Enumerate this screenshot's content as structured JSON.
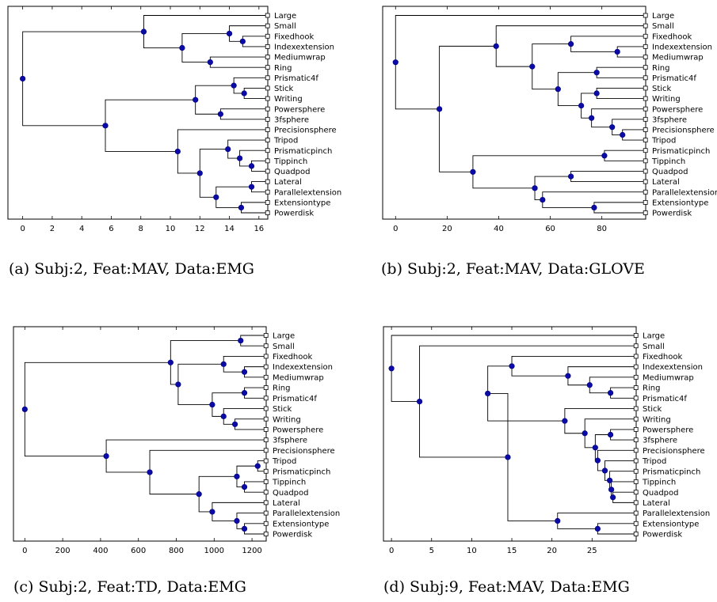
{
  "chart_data": [
    {
      "type": "dendrogram",
      "caption": "(a) Subj:2, Feat:MAV, Data:EMG",
      "xlim": [
        -1,
        16.6
      ],
      "xticks": [
        0,
        2,
        4,
        6,
        8,
        10,
        12,
        14,
        16
      ],
      "leaves": [
        "Large",
        "Small",
        "Fixedhook",
        "Indexextension",
        "Mediumwrap",
        "Ring",
        "Prismatic4f",
        "Stick",
        "Writing",
        "Powersphere",
        "3fsphere",
        "Precisionsphere",
        "Tripod",
        "Prismaticpinch",
        "Tippinch",
        "Quadpod",
        "Lateral",
        "Parallelextension",
        "Extensiontype",
        "Powerdisk"
      ],
      "merges": [
        [
          3,
          4,
          14.9
        ],
        [
          2,
          -1,
          14.0
        ],
        [
          5,
          6,
          12.7
        ],
        [
          -2,
          -3,
          10.8
        ],
        [
          1,
          -4,
          8.2
        ],
        [
          8,
          9,
          15.0
        ],
        [
          7,
          -6,
          14.3
        ],
        [
          10,
          11,
          13.4
        ],
        [
          -7,
          -8,
          11.7
        ],
        [
          15,
          16,
          15.5
        ],
        [
          14,
          -10,
          14.7
        ],
        [
          13,
          -11,
          13.9
        ],
        [
          17,
          18,
          15.5
        ],
        [
          19,
          20,
          14.8
        ],
        [
          -13,
          -14,
          13.1
        ],
        [
          -12,
          -15,
          12.0
        ],
        [
          12,
          -16,
          10.5
        ],
        [
          -9,
          -17,
          5.6
        ],
        [
          -5,
          -18,
          0.0
        ]
      ]
    },
    {
      "type": "dendrogram",
      "caption": "(b) Subj:2, Feat:MAV, Data:GLOVE",
      "xlim": [
        -5,
        97
      ],
      "xticks": [
        0,
        20,
        40,
        60,
        80
      ],
      "leaves": [
        "Large",
        "Small",
        "Fixedhook",
        "Indexextension",
        "Mediumwrap",
        "Ring",
        "Prismatic4f",
        "Stick",
        "Writing",
        "Powersphere",
        "3fsphere",
        "Precisionsphere",
        "Tripod",
        "Prismaticpinch",
        "Tippinch",
        "Quadpod",
        "Lateral",
        "Parallelextension",
        "Extensiontype",
        "Powerdisk"
      ],
      "merges": [
        [
          4,
          5,
          86.0
        ],
        [
          3,
          -1,
          68.0
        ],
        [
          6,
          7,
          78.0
        ],
        [
          8,
          9,
          78.0
        ],
        [
          12,
          13,
          88.0
        ],
        [
          11,
          -5,
          84.0
        ],
        [
          10,
          -6,
          76.0
        ],
        [
          -4,
          -7,
          72.0
        ],
        [
          -3,
          -8,
          63.0
        ],
        [
          -2,
          -9,
          53.0
        ],
        [
          2,
          -10,
          39.0
        ],
        [
          14,
          15,
          81.0
        ],
        [
          16,
          17,
          68.0
        ],
        [
          19,
          20,
          77.0
        ],
        [
          18,
          -14,
          57.0
        ],
        [
          -13,
          -15,
          54.0
        ],
        [
          -12,
          -16,
          30.0
        ],
        [
          -11,
          -17,
          17.0
        ],
        [
          1,
          -18,
          0.0
        ]
      ]
    },
    {
      "type": "dendrogram",
      "caption": "(c) Subj:2, Feat:TD, Data:EMG",
      "xlim": [
        -60,
        1275
      ],
      "xticks": [
        0,
        200,
        400,
        600,
        800,
        1000,
        1200
      ],
      "leaves": [
        "Large",
        "Small",
        "Fixedhook",
        "Indexextension",
        "Mediumwrap",
        "Ring",
        "Prismatic4f",
        "Stick",
        "Writing",
        "Powersphere",
        "3fsphere",
        "Precisionsphere",
        "Tripod",
        "Prismaticpinch",
        "Tippinch",
        "Quadpod",
        "Lateral",
        "Parallelextension",
        "Extensiontype",
        "Powerdisk"
      ],
      "merges": [
        [
          1,
          2,
          1140
        ],
        [
          4,
          5,
          1160
        ],
        [
          3,
          -2,
          1050
        ],
        [
          6,
          7,
          1160
        ],
        [
          9,
          10,
          1110
        ],
        [
          8,
          -5,
          1050
        ],
        [
          -4,
          -6,
          990
        ],
        [
          -3,
          -7,
          810
        ],
        [
          -1,
          -8,
          770
        ],
        [
          13,
          14,
          1230
        ],
        [
          15,
          16,
          1160
        ],
        [
          -10,
          -11,
          1120
        ],
        [
          19,
          20,
          1160
        ],
        [
          18,
          -13,
          1120
        ],
        [
          17,
          -14,
          990
        ],
        [
          -12,
          -15,
          920
        ],
        [
          12,
          -16,
          660
        ],
        [
          11,
          -17,
          430
        ],
        [
          -9,
          -18,
          0
        ]
      ]
    },
    {
      "type": "dendrogram",
      "caption": "(d) Subj:9, Feat:MAV, Data:EMG",
      "xlim": [
        -1,
        30.5
      ],
      "xticks": [
        0,
        5,
        10,
        15,
        20,
        25
      ],
      "leaves": [
        "Large",
        "Small",
        "Fixedhook",
        "Indexextension",
        "Mediumwrap",
        "Ring",
        "Prismatic4f",
        "Stick",
        "Writing",
        "Powersphere",
        "3fsphere",
        "Precisionsphere",
        "Tripod",
        "Prismaticpinch",
        "Tippinch",
        "Quadpod",
        "Lateral",
        "Parallelextension",
        "Extensiontype",
        "Powerdisk"
      ],
      "merges": [
        [
          6,
          7,
          27.3
        ],
        [
          5,
          -1,
          24.7
        ],
        [
          4,
          -2,
          22.0
        ],
        [
          3,
          -3,
          15.0
        ],
        [
          10,
          11,
          27.3
        ],
        [
          16,
          17,
          27.6
        ],
        [
          15,
          -6,
          27.4
        ],
        [
          14,
          -7,
          27.2
        ],
        [
          13,
          -8,
          26.6
        ],
        [
          12,
          -9,
          25.7
        ],
        [
          -5,
          -10,
          25.4
        ],
        [
          9,
          -11,
          24.1
        ],
        [
          8,
          -12,
          21.6
        ],
        [
          -4,
          -13,
          12.0
        ],
        [
          19,
          20,
          25.7
        ],
        [
          18,
          -15,
          20.7
        ],
        [
          -14,
          -16,
          14.5
        ],
        [
          2,
          -17,
          3.5
        ],
        [
          1,
          -18,
          0.0
        ]
      ]
    }
  ]
}
